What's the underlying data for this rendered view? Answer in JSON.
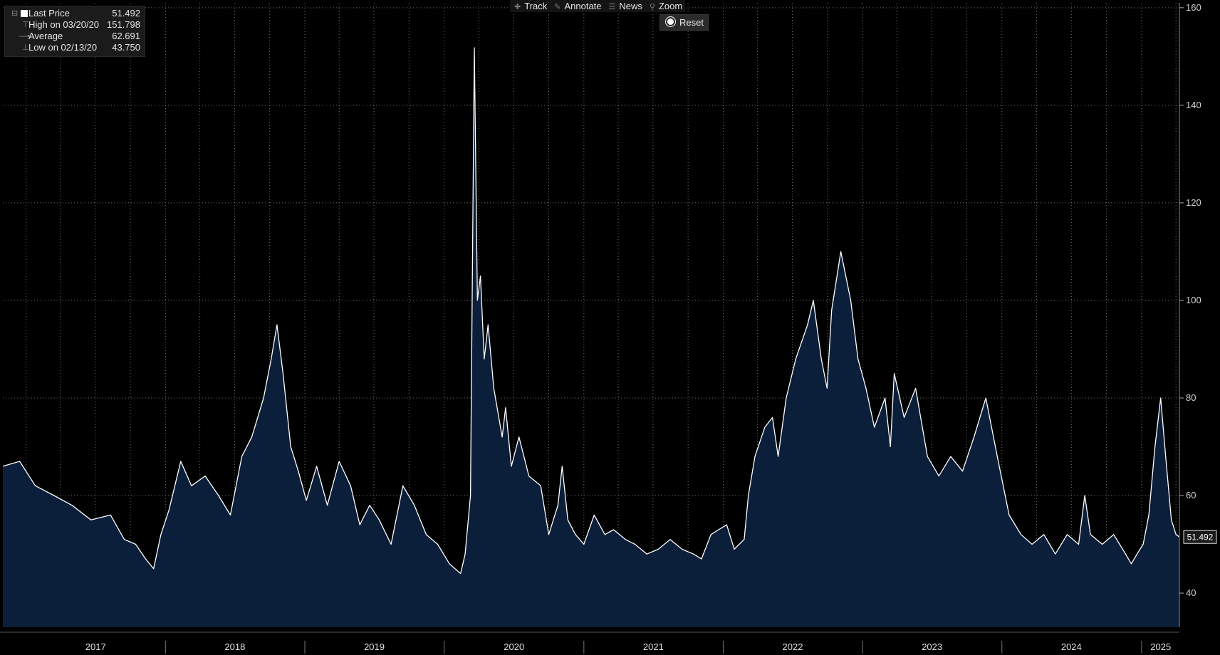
{
  "legend": {
    "last_price_label": "Last Price",
    "last_price_value": "51.492",
    "high_label": "High on 03/20/20",
    "high_value": "151.798",
    "average_label": "Average",
    "average_value": "62.691",
    "low_label": "Low on 02/13/20",
    "low_value": "43.750"
  },
  "toolbar": {
    "track": "Track",
    "annotate": "Annotate",
    "news": "News",
    "zoom": "Zoom",
    "reset": "Reset"
  },
  "colors": {
    "background": "#000000",
    "area_fill": "#0b1f3a",
    "line": "#ffffff",
    "grid": "#6e6e6e",
    "text": "#e6e6e6",
    "last_price_tag_bg": "#1a1a1a"
  },
  "chart_data": {
    "type": "area",
    "title": "",
    "xlabel": "",
    "ylabel": "",
    "y_axis_side": "right",
    "ylim": [
      33,
      161
    ],
    "xlim": [
      "2016-11-01",
      "2025-04-10"
    ],
    "y_ticks": [
      40,
      60,
      80,
      100,
      120,
      140,
      160
    ],
    "x_tick_labels": [
      "2017",
      "2018",
      "2019",
      "2020",
      "2021",
      "2022",
      "2023",
      "2024",
      "2025"
    ],
    "x_label_dates": [
      "2017-07-02",
      "2018-07-02",
      "2019-07-02",
      "2020-07-02",
      "2021-07-02",
      "2022-07-02",
      "2023-07-02",
      "2024-07-01",
      "2025-02-20"
    ],
    "x_divider_dates": [
      "2018-01-01",
      "2019-01-01",
      "2020-01-01",
      "2021-01-01",
      "2022-01-01",
      "2023-01-01",
      "2024-01-01",
      "2025-01-01"
    ],
    "grid": true,
    "grid_style": "dotted",
    "last_value_label": "51.492",
    "series": [
      {
        "name": "Last Price",
        "dates": [
          "2016-11-01",
          "2016-12-15",
          "2017-01-25",
          "2017-03-15",
          "2017-05-01",
          "2017-06-20",
          "2017-08-10",
          "2017-09-15",
          "2017-10-15",
          "2017-11-10",
          "2017-12-01",
          "2017-12-20",
          "2018-01-10",
          "2018-02-10",
          "2018-03-10",
          "2018-04-15",
          "2018-05-20",
          "2018-06-20",
          "2018-07-20",
          "2018-08-15",
          "2018-09-15",
          "2018-10-05",
          "2018-10-20",
          "2018-11-05",
          "2018-11-25",
          "2018-12-15",
          "2019-01-05",
          "2019-02-01",
          "2019-03-01",
          "2019-04-01",
          "2019-05-01",
          "2019-05-25",
          "2019-06-20",
          "2019-07-15",
          "2019-08-15",
          "2019-09-15",
          "2019-10-15",
          "2019-11-15",
          "2019-12-15",
          "2020-01-15",
          "2020-02-13",
          "2020-02-25",
          "2020-03-10",
          "2020-03-20",
          "2020-03-28",
          "2020-04-05",
          "2020-04-15",
          "2020-04-25",
          "2020-05-10",
          "2020-06-01",
          "2020-06-10",
          "2020-06-25",
          "2020-07-15",
          "2020-08-10",
          "2020-09-10",
          "2020-10-01",
          "2020-10-25",
          "2020-11-05",
          "2020-11-20",
          "2020-12-10",
          "2021-01-01",
          "2021-01-28",
          "2021-02-25",
          "2021-03-20",
          "2021-04-20",
          "2021-05-15",
          "2021-06-15",
          "2021-07-15",
          "2021-08-15",
          "2021-09-15",
          "2021-10-15",
          "2021-11-05",
          "2021-11-30",
          "2021-12-20",
          "2022-01-10",
          "2022-01-30",
          "2022-02-25",
          "2022-03-08",
          "2022-03-25",
          "2022-04-20",
          "2022-05-10",
          "2022-05-25",
          "2022-06-15",
          "2022-07-10",
          "2022-08-10",
          "2022-08-25",
          "2022-09-15",
          "2022-09-30",
          "2022-10-12",
          "2022-11-05",
          "2022-12-01",
          "2022-12-20",
          "2023-01-10",
          "2023-02-01",
          "2023-03-01",
          "2023-03-15",
          "2023-03-25",
          "2023-04-20",
          "2023-05-20",
          "2023-06-20",
          "2023-07-20",
          "2023-08-20",
          "2023-09-20",
          "2023-10-20",
          "2023-11-20",
          "2023-12-20",
          "2024-01-20",
          "2024-02-20",
          "2024-03-20",
          "2024-04-20",
          "2024-05-20",
          "2024-06-20",
          "2024-07-20",
          "2024-08-05",
          "2024-08-20",
          "2024-09-20",
          "2024-10-20",
          "2024-11-20",
          "2024-12-05",
          "2024-12-20",
          "2025-01-05",
          "2025-01-20",
          "2025-02-05",
          "2025-02-20",
          "2025-03-05",
          "2025-03-20",
          "2025-04-01",
          "2025-04-10"
        ],
        "values": [
          66,
          67,
          62,
          60,
          58,
          55,
          56,
          51,
          50,
          47,
          45,
          52,
          57,
          67,
          62,
          64,
          60,
          56,
          68,
          72,
          80,
          88,
          95,
          85,
          70,
          65,
          59,
          66,
          58,
          67,
          62,
          54,
          58,
          55,
          50,
          62,
          58,
          52,
          50,
          46,
          44,
          48,
          60,
          151.8,
          100,
          105,
          88,
          95,
          82,
          72,
          78,
          66,
          72,
          64,
          62,
          52,
          58,
          66,
          55,
          52,
          50,
          56,
          52,
          53,
          51,
          50,
          48,
          49,
          51,
          49,
          48,
          47,
          52,
          53,
          54,
          49,
          51,
          60,
          68,
          74,
          76,
          68,
          80,
          88,
          95,
          100,
          88,
          82,
          98,
          110,
          100,
          88,
          82,
          74,
          80,
          70,
          85,
          76,
          82,
          68,
          64,
          68,
          65,
          72,
          80,
          68,
          56,
          52,
          50,
          52,
          48,
          52,
          50,
          60,
          52,
          50,
          52,
          48,
          46,
          48,
          50,
          56,
          70,
          80,
          68,
          55,
          52,
          51.5
        ]
      }
    ]
  }
}
